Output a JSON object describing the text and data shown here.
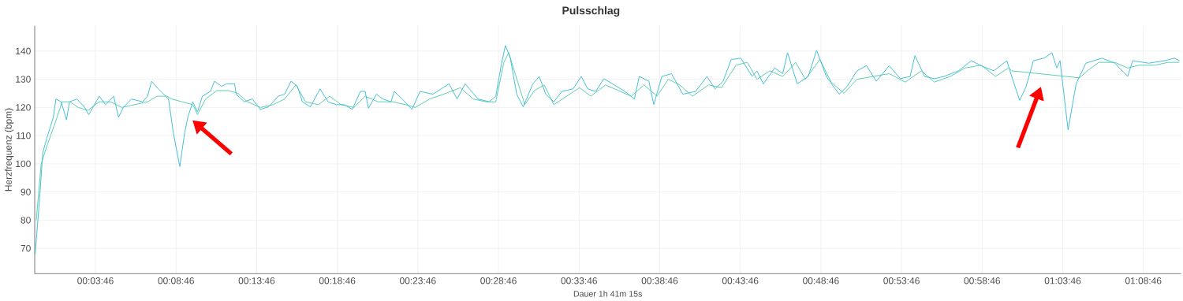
{
  "chart_data": {
    "type": "line",
    "title": "Pulsschlag",
    "xlabel": "Dauer 1h 41m 15s",
    "ylabel": "Herzfrequenz (bpm)",
    "grid": true,
    "xlim": [
      0,
      71.1
    ],
    "ylim": [
      61,
      149
    ],
    "yticks": [
      70,
      80,
      90,
      100,
      110,
      120,
      130,
      140
    ],
    "xticks": [
      {
        "value": 3.767,
        "label": "00:03:46"
      },
      {
        "value": 8.767,
        "label": "00:08:46"
      },
      {
        "value": 13.767,
        "label": "00:13:46"
      },
      {
        "value": 18.767,
        "label": "00:18:46"
      },
      {
        "value": 23.767,
        "label": "00:23:46"
      },
      {
        "value": 28.767,
        "label": "00:28:46"
      },
      {
        "value": 33.767,
        "label": "00:33:46"
      },
      {
        "value": 38.767,
        "label": "00:38:46"
      },
      {
        "value": 43.767,
        "label": "00:43:46"
      },
      {
        "value": 48.767,
        "label": "00:48:46"
      },
      {
        "value": 53.767,
        "label": "00:53:46"
      },
      {
        "value": 58.767,
        "label": "00:58:46"
      },
      {
        "value": 63.767,
        "label": "01:03:46"
      },
      {
        "value": 68.767,
        "label": "01:08:46"
      }
    ],
    "series": [
      {
        "color": "#5ccfae",
        "x": [
          0.1,
          0.4,
          0.8,
          1.3,
          1.7,
          2.2,
          2.7,
          3.3,
          4.0,
          4.7,
          5.4,
          6.2,
          7.0,
          7.6,
          8.2,
          8.5,
          9.8,
          10.1,
          10.6,
          11.3,
          12.0,
          12.6,
          13.2,
          14.0,
          14.8,
          15.5,
          16.2,
          16.8,
          17.6,
          18.3,
          19.0,
          19.8,
          20.5,
          21.3,
          22.2,
          23.0,
          23.6,
          24.5,
          25.5,
          26.4,
          27.2,
          28.0,
          28.6,
          29.1,
          29.4,
          29.8,
          30.4,
          31.0,
          31.6,
          32.2,
          33.0,
          33.8,
          34.5,
          35.4,
          36.2,
          37.0,
          37.8,
          38.6,
          39.3,
          40.0,
          40.8,
          41.8,
          42.6,
          43.5,
          44.2,
          44.8,
          45.6,
          46.4,
          47.2,
          47.8,
          48.7,
          49.4,
          50.2,
          51.0,
          52.0,
          53.0,
          54.0,
          55.0,
          55.8,
          56.8,
          57.7,
          58.7,
          59.6,
          60.4,
          60.6,
          64.8,
          65.3,
          66.0,
          67.0,
          67.8,
          68.5,
          69.5,
          70.3,
          71.0
        ],
        "values": [
          80,
          100,
          107,
          115,
          122,
          122,
          120,
          119,
          122,
          122,
          120,
          121,
          122,
          124,
          124,
          123,
          121,
          117.5,
          123,
          126,
          126,
          125,
          122,
          120,
          121,
          123,
          128,
          122,
          121,
          124,
          121,
          120,
          124,
          122,
          122,
          121,
          120,
          123,
          125,
          127,
          123,
          122,
          122,
          136,
          139.5,
          132,
          121,
          126,
          128,
          121,
          124,
          127,
          124,
          128,
          126,
          124,
          128,
          124,
          130,
          128,
          124,
          128,
          127,
          135,
          136,
          130,
          133,
          131,
          136,
          130,
          137,
          129,
          125,
          130,
          131,
          132,
          129,
          133,
          129,
          131,
          134,
          135,
          131,
          134,
          133,
          130.5,
          133,
          136,
          136,
          134,
          135,
          135,
          136,
          136
        ]
      },
      {
        "color": "#45bfd8",
        "x": [
          0.03,
          0.31,
          0.5,
          0.75,
          1.15,
          1.32,
          1.64,
          1.97,
          2.16,
          2.62,
          3.1,
          3.35,
          4.0,
          4.4,
          4.9,
          5.2,
          5.5,
          6.0,
          6.7,
          7.0,
          7.25,
          7.66,
          8.3,
          8.6,
          9.0,
          9.3,
          9.5,
          9.8,
          10.1,
          10.4,
          10.9,
          11.15,
          11.6,
          11.9,
          12.4,
          12.5,
          13.0,
          13.5,
          14.0,
          14.5,
          14.8,
          15.1,
          15.5,
          15.9,
          16.3,
          16.6,
          17.1,
          17.7,
          18.2,
          18.7,
          19.2,
          19.7,
          20.2,
          20.5,
          20.7,
          21.2,
          21.6,
          22.1,
          22.3,
          22.8,
          23.4,
          23.9,
          24.7,
          25.7,
          26.2,
          26.7,
          27.5,
          28.2,
          28.6,
          28.96,
          29.2,
          29.5,
          29.9,
          30.3,
          30.9,
          31.3,
          31.7,
          32.2,
          32.7,
          33.4,
          33.9,
          34.3,
          34.8,
          35.3,
          36.1,
          36.6,
          37.2,
          37.5,
          38.1,
          38.4,
          38.9,
          39.5,
          40.2,
          41.0,
          41.7,
          42.2,
          42.7,
          43.2,
          43.8,
          44.5,
          44.8,
          45.2,
          45.9,
          46.4,
          46.7,
          47.3,
          47.98,
          48.5,
          49.1,
          49.9,
          50.4,
          51.0,
          51.6,
          52.2,
          53.0,
          53.7,
          54.3,
          54.6,
          55.2,
          55.8,
          56.4,
          57.3,
          58.1,
          58.7,
          59.5,
          60.3,
          60.7,
          61.1,
          61.5,
          61.95,
          62.6,
          63.1,
          63.4,
          63.6,
          64.1,
          64.6,
          65.2,
          66.2,
          67.0,
          67.8,
          68.1,
          69.1,
          70.1,
          70.7,
          71.0
        ],
        "values": [
          68,
          88,
          104,
          109,
          116.5,
          123,
          122,
          115.6,
          122,
          123,
          120,
          117.4,
          124,
          121,
          124,
          116.5,
          120,
          123,
          122,
          124,
          129.3,
          126.6,
          123,
          111,
          99,
          111,
          116.5,
          122,
          118.4,
          124,
          125.7,
          129.3,
          127.5,
          128.4,
          128.4,
          124.7,
          122,
          123,
          119.3,
          120.2,
          122,
          124,
          124.7,
          129.3,
          127.5,
          122,
          120.2,
          126.6,
          122,
          121,
          121,
          119.3,
          125.7,
          125.7,
          119.7,
          124.7,
          123,
          122,
          125.7,
          123,
          119.3,
          125.7,
          124.7,
          128.4,
          123,
          128.4,
          123,
          122,
          124,
          135.7,
          142,
          137.5,
          124.7,
          120.2,
          128.4,
          131,
          124.7,
          122,
          125.7,
          126.6,
          131,
          126.6,
          125.7,
          130.2,
          127.5,
          125.7,
          123,
          131,
          129.3,
          121,
          131,
          132,
          124.7,
          125.7,
          131,
          126.6,
          129.3,
          137,
          137.5,
          131,
          133,
          128.4,
          134,
          132,
          139.4,
          128.4,
          131,
          140.3,
          131,
          124.7,
          127.5,
          133,
          134.8,
          129.3,
          134.8,
          130.2,
          131,
          138.4,
          131,
          130.2,
          131,
          133,
          136.6,
          134.8,
          133,
          136.6,
          129.3,
          122.5,
          127.5,
          136.6,
          137.5,
          139.4,
          134,
          136.6,
          112,
          128.4,
          135.7,
          137.5,
          135.7,
          131,
          136.6,
          135.7,
          136.6,
          137.5,
          136.6
        ]
      }
    ]
  }
}
